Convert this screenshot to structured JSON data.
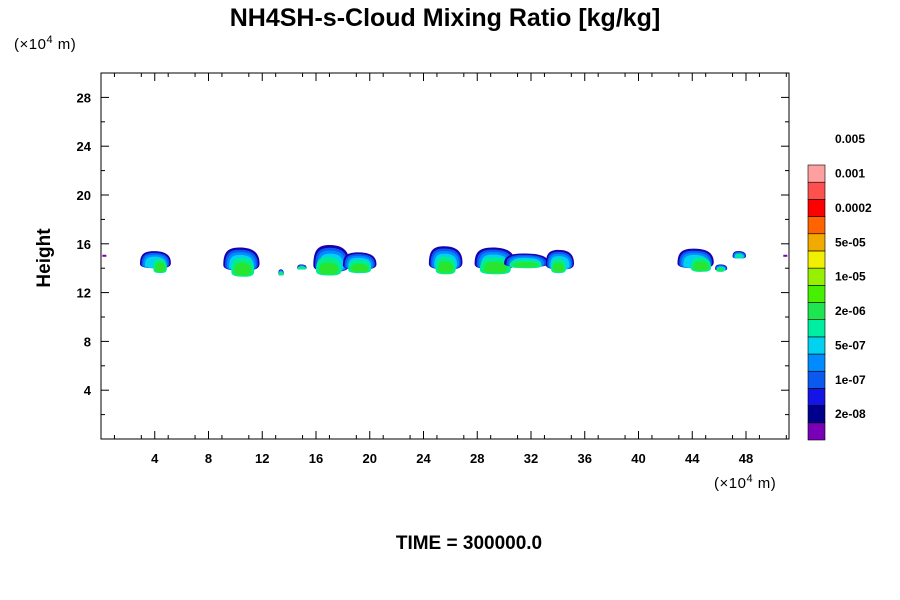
{
  "chart_data": {
    "type": "heatmap",
    "title": "NH4SH-s-Cloud Mixing Ratio [kg/kg]",
    "xlabel": "",
    "ylabel": "Height",
    "x_unit": "(×10⁴ m)",
    "y_unit": "(×10⁴ m)",
    "x_unit_base": "(×10",
    "x_unit_exp": "4",
    "x_unit_end": " m)",
    "y_unit_base": "(×10",
    "y_unit_exp": "4",
    "y_unit_end": " m)",
    "footer": "TIME = 300000.0",
    "xlim": [
      0,
      51.2
    ],
    "ylim": [
      0,
      30
    ],
    "xticks": [
      4,
      8,
      12,
      16,
      20,
      24,
      28,
      32,
      36,
      40,
      44,
      48
    ],
    "yticks": [
      4,
      8,
      12,
      16,
      20,
      24,
      28
    ],
    "grid": false,
    "legend_position": "right",
    "colorbar": {
      "colors": [
        "#7a00b8",
        "#00008c",
        "#1414e6",
        "#0a5af0",
        "#008cff",
        "#00d2f0",
        "#00eea0",
        "#1ee650",
        "#46f000",
        "#96f000",
        "#f0f000",
        "#f0aa00",
        "#ff6400",
        "#ff0000",
        "#ff5050",
        "#ffa0a0"
      ],
      "labels": [
        "2e-08",
        "1e-07",
        "5e-07",
        "2e-06",
        "1e-05",
        "5e-05",
        "0.0002",
        "0.001",
        "0.005"
      ]
    },
    "cloud_blobs": [
      {
        "x0": 2.9,
        "x1": 5.2,
        "base": 14.0,
        "top": 15.4,
        "core_x0": 3.9,
        "core_x1": 4.9,
        "core_base": 13.6
      },
      {
        "x0": 9.1,
        "x1": 11.8,
        "base": 13.8,
        "top": 15.7,
        "core_x0": 9.7,
        "core_x1": 11.4,
        "core_base": 13.3
      },
      {
        "x0": 13.2,
        "x1": 13.6,
        "base": 13.4,
        "top": 13.9,
        "core_x0": 13.2,
        "core_x1": 13.6,
        "core_base": 13.4
      },
      {
        "x0": 14.6,
        "x1": 15.3,
        "base": 13.9,
        "top": 14.3,
        "core_x0": 14.6,
        "core_x1": 15.3,
        "core_base": 13.9
      },
      {
        "x0": 15.8,
        "x1": 18.5,
        "base": 13.7,
        "top": 15.9,
        "core_x0": 16.0,
        "core_x1": 17.9,
        "core_base": 13.4
      },
      {
        "x0": 18.0,
        "x1": 20.5,
        "base": 13.9,
        "top": 15.3,
        "core_x0": 18.4,
        "core_x1": 20.1,
        "core_base": 13.6
      },
      {
        "x0": 24.4,
        "x1": 26.9,
        "base": 13.9,
        "top": 15.8,
        "core_x0": 24.9,
        "core_x1": 26.4,
        "core_base": 13.5
      },
      {
        "x0": 27.8,
        "x1": 30.8,
        "base": 13.9,
        "top": 15.7,
        "core_x0": 28.2,
        "core_x1": 30.5,
        "core_base": 13.5
      },
      {
        "x0": 30.0,
        "x1": 33.3,
        "base": 14.1,
        "top": 15.2,
        "core_x0": 30.4,
        "core_x1": 32.8,
        "core_base": 14.0
      },
      {
        "x0": 33.1,
        "x1": 35.2,
        "base": 13.9,
        "top": 15.5,
        "core_x0": 33.5,
        "core_x1": 34.6,
        "core_base": 13.6
      },
      {
        "x0": 42.9,
        "x1": 45.6,
        "base": 14.0,
        "top": 15.6,
        "core_x0": 43.9,
        "core_x1": 45.4,
        "core_base": 13.7
      },
      {
        "x0": 45.7,
        "x1": 46.6,
        "base": 13.8,
        "top": 14.3,
        "core_x0": 45.8,
        "core_x1": 46.4,
        "core_base": 13.7
      },
      {
        "x0": 47.0,
        "x1": 48.0,
        "base": 14.8,
        "top": 15.4,
        "core_x0": 47.2,
        "core_x1": 47.8,
        "core_base": 14.9
      }
    ]
  }
}
